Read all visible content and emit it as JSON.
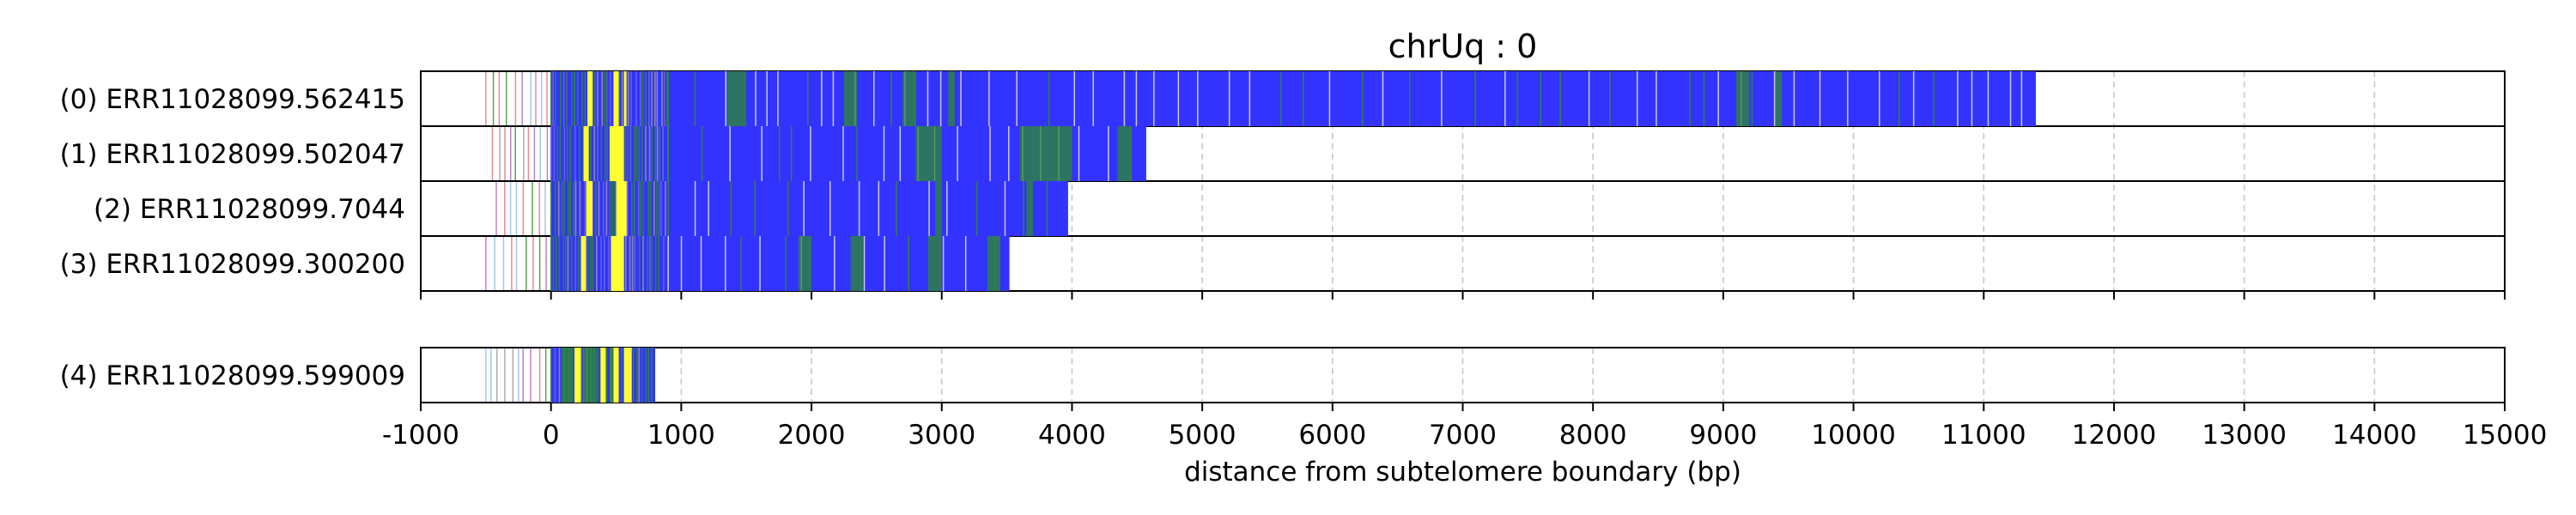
{
  "chart_data": {
    "type": "bar",
    "orientation": "horizontal-tracks",
    "title": "chrUq : 0",
    "xlabel": "distance from subtelomere boundary (bp)",
    "xlim": [
      -1000,
      15000
    ],
    "xticks": [
      -1000,
      0,
      1000,
      2000,
      3000,
      4000,
      5000,
      6000,
      7000,
      8000,
      9000,
      10000,
      11000,
      12000,
      13000,
      14000,
      15000
    ],
    "xtick_labels": [
      "-1000",
      "0",
      "1000",
      "2000",
      "3000",
      "4000",
      "5000",
      "6000",
      "7000",
      "8000",
      "9000",
      "10000",
      "11000",
      "12000",
      "13000",
      "14000",
      "15000"
    ],
    "grid": "vertical dashed",
    "colors": {
      "main": "#3333ff",
      "yellow": "#ffff33",
      "green": "#2e8b2e",
      "purple": "#b060c0",
      "pink": "#e07080",
      "light_blue": "#8fb8e8",
      "grey": "#999999"
    },
    "reads": [
      {
        "label": "(0) ERR11028099.562415",
        "group": 0,
        "start": -500,
        "main_start": 0,
        "end": 11400,
        "yellow": [
          [
            280,
            320
          ],
          [
            480,
            520
          ],
          [
            560,
            580
          ]
        ],
        "green": [
          [
            1350,
            1500
          ],
          [
            2250,
            2350
          ],
          [
            2700,
            2800
          ],
          [
            3050,
            3100
          ],
          [
            9100,
            9200
          ],
          [
            9400,
            9450
          ]
        ]
      },
      {
        "label": "(1) ERR11028099.502047",
        "group": 0,
        "start": -450,
        "main_start": 0,
        "end": 4570,
        "yellow": [
          [
            250,
            290
          ],
          [
            450,
            560
          ]
        ],
        "green": [
          [
            2800,
            3000
          ],
          [
            3600,
            4000
          ],
          [
            4350,
            4450
          ]
        ]
      },
      {
        "label": "(2) ERR11028099.7044",
        "group": 0,
        "start": -420,
        "main_start": 0,
        "end": 3970,
        "yellow": [
          [
            270,
            320
          ],
          [
            500,
            580
          ]
        ],
        "green": [
          [
            2950,
            3000
          ],
          [
            3650,
            3700
          ]
        ]
      },
      {
        "label": "(3) ERR11028099.300200",
        "group": 0,
        "start": -500,
        "main_start": 0,
        "end": 3520,
        "yellow": [
          [
            230,
            270
          ],
          [
            460,
            560
          ]
        ],
        "green": [
          [
            1900,
            2000
          ],
          [
            2300,
            2400
          ],
          [
            2900,
            3000
          ],
          [
            3350,
            3450
          ]
        ]
      },
      {
        "label": "(4) ERR11028099.599009",
        "group": 1,
        "start": -500,
        "main_start": 0,
        "end": 800,
        "yellow": [
          [
            180,
            230
          ],
          [
            380,
            420
          ],
          [
            480,
            520
          ],
          [
            560,
            620
          ]
        ],
        "green": [
          [
            80,
            160
          ],
          [
            250,
            350
          ],
          [
            450,
            480
          ]
        ]
      }
    ]
  }
}
